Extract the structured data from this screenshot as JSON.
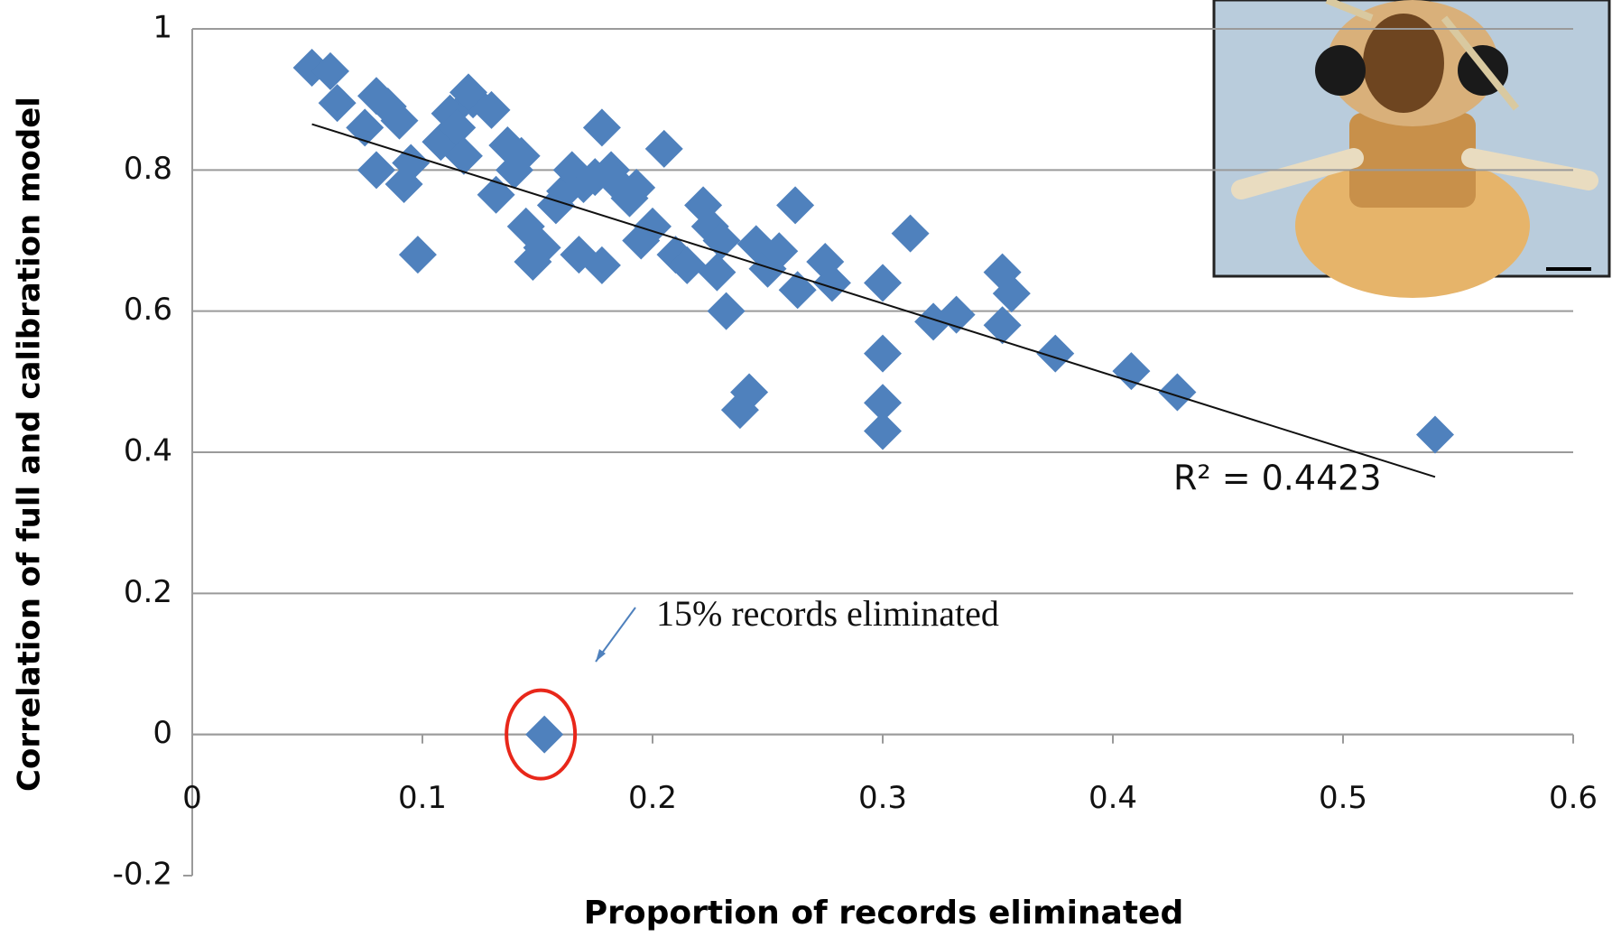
{
  "chart_data": {
    "type": "scatter",
    "xlabel": "Proportion of records eliminated",
    "ylabel": "Correlation of full and calibration model",
    "x": [
      0.052,
      0.06,
      0.063,
      0.075,
      0.08,
      0.08,
      0.085,
      0.09,
      0.092,
      0.095,
      0.098,
      0.108,
      0.112,
      0.115,
      0.118,
      0.122,
      0.12,
      0.13,
      0.132,
      0.137,
      0.14,
      0.143,
      0.145,
      0.148,
      0.152,
      0.158,
      0.162,
      0.165,
      0.168,
      0.17,
      0.175,
      0.178,
      0.178,
      0.182,
      0.185,
      0.19,
      0.193,
      0.195,
      0.2,
      0.205,
      0.21,
      0.215,
      0.222,
      0.225,
      0.228,
      0.23,
      0.232,
      0.238,
      0.242,
      0.245,
      0.25,
      0.255,
      0.262,
      0.263,
      0.275,
      0.278,
      0.3,
      0.3,
      0.3,
      0.3,
      0.312,
      0.322,
      0.332,
      0.352,
      0.352,
      0.356,
      0.375,
      0.408,
      0.428,
      0.54,
      0.153
    ],
    "values": [
      0.945,
      0.94,
      0.895,
      0.86,
      0.8,
      0.905,
      0.89,
      0.87,
      0.78,
      0.81,
      0.68,
      0.84,
      0.88,
      0.86,
      0.82,
      0.9,
      0.91,
      0.885,
      0.765,
      0.835,
      0.8,
      0.82,
      0.72,
      0.67,
      0.69,
      0.75,
      0.77,
      0.8,
      0.68,
      0.78,
      0.79,
      0.86,
      0.665,
      0.8,
      0.78,
      0.76,
      0.775,
      0.7,
      0.72,
      0.83,
      0.68,
      0.665,
      0.75,
      0.72,
      0.655,
      0.7,
      0.6,
      0.46,
      0.485,
      0.695,
      0.66,
      0.685,
      0.75,
      0.63,
      0.67,
      0.64,
      0.64,
      0.54,
      0.47,
      0.43,
      0.71,
      0.585,
      0.595,
      0.655,
      0.58,
      0.625,
      0.54,
      0.515,
      0.485,
      0.425,
      0
    ],
    "color": "#4f81bd",
    "xlim": [
      0,
      0.6
    ],
    "xticks": [
      0,
      0.1,
      0.2,
      0.3,
      0.4,
      0.5,
      0.6
    ],
    "ylim": [
      -0.2,
      1
    ],
    "yticks": [
      -0.2,
      0,
      0.2,
      0.4,
      0.6,
      0.8,
      1
    ],
    "grid": true,
    "trendline": {
      "x": [
        0.052,
        0.54
      ],
      "y": [
        0.865,
        0.365
      ],
      "label": "R² = 0.4423"
    },
    "annotation": "15% records eliminated"
  }
}
